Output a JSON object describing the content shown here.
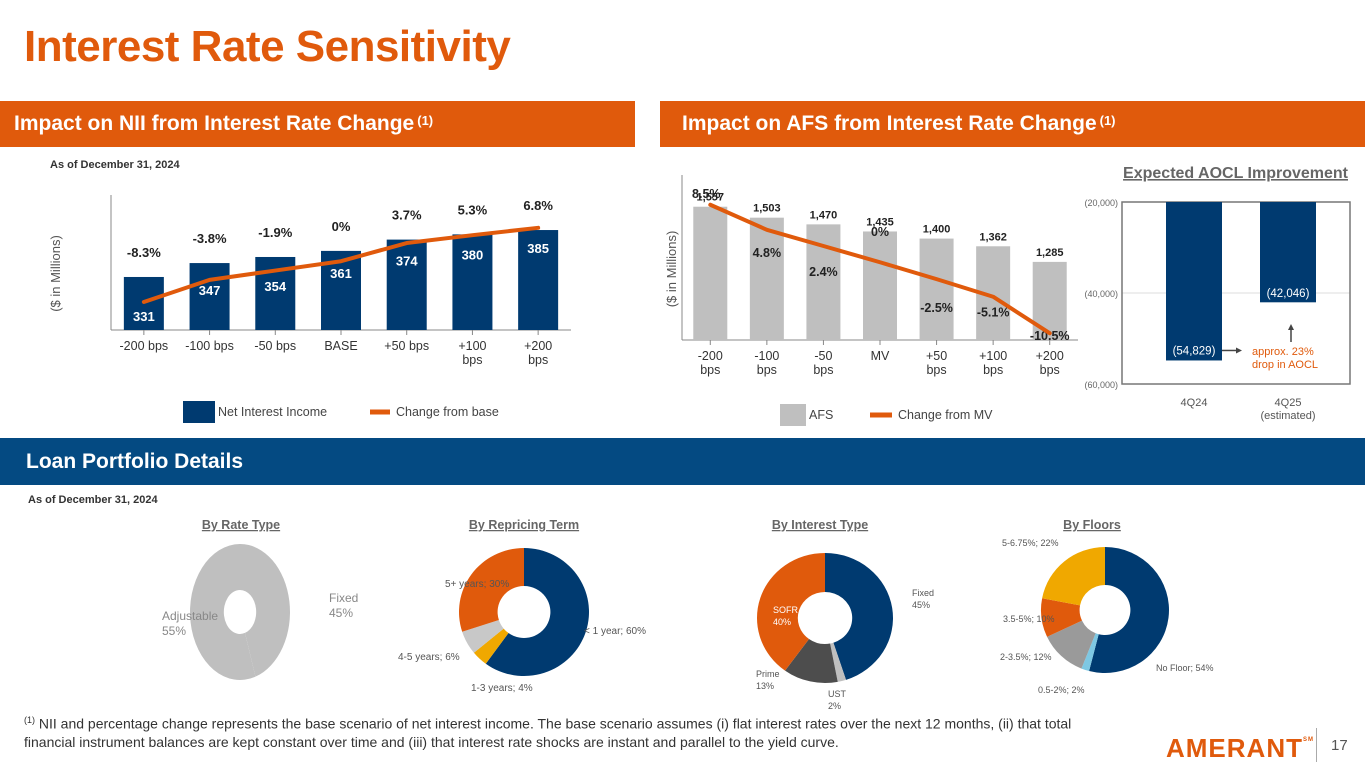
{
  "page": {
    "title": "Interest Rate Sensitivity",
    "page_number": "17",
    "logo_text": "AMERANT",
    "logo_mark": "SM"
  },
  "nii_section": {
    "header": "Impact on NII from Interest Rate Change",
    "header_note": "(1)",
    "as_of": "As of December 31, 2024"
  },
  "afs_section": {
    "header": "Impact on AFS from Interest Rate Change",
    "header_note": "(1)"
  },
  "loan_section": {
    "header": "Loan Portfolio Details",
    "as_of": "As of December 31, 2024"
  },
  "footnote": {
    "marker": "(1)",
    "text": "NII and percentage change represents the base scenario of net interest income. The base scenario assumes (i) flat interest rates over the next 12 months, (ii) that total financial instrument balances are kept constant over time and (iii) that interest rate shocks are instant and parallel to the yield curve."
  },
  "colors": {
    "orange": "#e05a0c",
    "navy": "#003a70",
    "band_blue": "#044a82",
    "gray": "#bfbfbf",
    "dark_gray": "#595959",
    "gold": "#f0a800",
    "light_blue": "#7ec8e3",
    "mid_gray": "#9a9a9a"
  },
  "chart_data": [
    {
      "id": "nii",
      "type": "bar",
      "title": "Impact on NII from Interest Rate Change",
      "ylabel": "($ in Millions)",
      "xlabel": "",
      "categories": [
        "-200 bps",
        "-100 bps",
        "-50 bps",
        "BASE",
        "+50 bps",
        "+100 bps",
        "+200 bps"
      ],
      "category_lines": [
        [
          "-200 bps"
        ],
        [
          "-100 bps"
        ],
        [
          "-50 bps"
        ],
        [
          "BASE"
        ],
        [
          "+50 bps"
        ],
        [
          "+100",
          "bps"
        ],
        [
          "+200",
          "bps"
        ]
      ],
      "series": [
        {
          "name": "Net Interest Income",
          "kind": "bar",
          "values": [
            331,
            347,
            354,
            361,
            374,
            380,
            385
          ],
          "labels": [
            "331",
            "347",
            "354",
            "361",
            "374",
            "380",
            "385"
          ]
        },
        {
          "name": "Change from base",
          "kind": "line",
          "values": [
            -8.3,
            -3.8,
            -1.9,
            0,
            3.7,
            5.3,
            6.8
          ],
          "labels": [
            "-8.3%",
            "-3.8%",
            "-1.9%",
            "0%",
            "3.7%",
            "5.3%",
            "6.8%"
          ]
        }
      ],
      "ylim": [
        270,
        400
      ],
      "y2lim": [
        -14,
        9
      ],
      "grid": false,
      "legend": "bottom"
    },
    {
      "id": "afs",
      "type": "bar",
      "title": "Impact on AFS from Interest Rate Change",
      "ylabel": "($ in Millions)",
      "xlabel": "",
      "categories": [
        "-200 bps",
        "-100 bps",
        "-50 bps",
        "MV",
        "+50 bps",
        "+100 bps",
        "+200 bps"
      ],
      "category_lines": [
        [
          "-200",
          "bps"
        ],
        [
          "-100",
          "bps"
        ],
        [
          "-50",
          "bps"
        ],
        [
          "MV"
        ],
        [
          "+50",
          "bps"
        ],
        [
          "+100",
          "bps"
        ],
        [
          "+200",
          "bps"
        ]
      ],
      "series": [
        {
          "name": "AFS",
          "kind": "bar",
          "values": [
            1557,
            1503,
            1470,
            1435,
            1400,
            1362,
            1285
          ],
          "labels": [
            "1,557",
            "1,503",
            "1,470",
            "1,435",
            "1,400",
            "1,362",
            "1,285"
          ]
        },
        {
          "name": "Change from MV",
          "kind": "line",
          "values": [
            8.5,
            4.8,
            2.4,
            0,
            -2.5,
            -5.1,
            -10.5
          ],
          "labels": [
            "8.5%",
            "4.8%",
            "2.4%",
            "0%",
            "-2.5%",
            "-5.1%",
            "-10.5%"
          ]
        }
      ],
      "ylim": [
        900,
        1600
      ],
      "y2lim": [
        -11.5,
        9.5
      ],
      "grid": false,
      "legend": "bottom"
    },
    {
      "id": "aocl",
      "type": "bar",
      "title": "Expected AOCL Improvement",
      "xlabel": "",
      "ylabel": "",
      "categories": [
        "4Q24",
        "4Q25 (estimated)"
      ],
      "category_lines": [
        [
          "4Q24"
        ],
        [
          "4Q25",
          "(estimated)"
        ]
      ],
      "values": [
        -54829,
        -42046
      ],
      "labels": [
        "(54,829)",
        "(42,046)"
      ],
      "ylim": [
        -60000,
        -20000
      ],
      "yticks": [
        -20000,
        -40000,
        -60000
      ],
      "ytick_labels": [
        "(20,000)",
        "(40,000)",
        "(60,000)"
      ],
      "annotation": [
        "approx. 23%",
        "drop in AOCL"
      ],
      "grid": true
    },
    {
      "id": "rate_type",
      "type": "pie",
      "title": "By Rate Type",
      "slices": [
        {
          "label": "Fixed",
          "value": 45,
          "text": "45%",
          "color": "#bfbfbf"
        },
        {
          "label": "Adjustable",
          "value": 55,
          "text": "55%",
          "color": "#bfbfbf"
        }
      ]
    },
    {
      "id": "repricing_term",
      "type": "pie",
      "title": "By Repricing Term",
      "slices": [
        {
          "label": "< 1 year; 60%",
          "value": 60,
          "color": "#003a70"
        },
        {
          "label": "1-3 years; 4%",
          "value": 4,
          "color": "#f0a800"
        },
        {
          "label": "4-5 years; 6%",
          "value": 6,
          "color": "#c8c8c8"
        },
        {
          "label": "5+ years; 30%",
          "value": 30,
          "color": "#e05a0c"
        }
      ]
    },
    {
      "id": "interest_type",
      "type": "pie",
      "title": "By Interest Type",
      "slices": [
        {
          "label": "Fixed",
          "text": "45%",
          "value": 45,
          "color": "#003a70"
        },
        {
          "label": "UST",
          "text": "2%",
          "value": 2,
          "color": "#bfbfbf"
        },
        {
          "label": "Prime",
          "text": "13%",
          "value": 13,
          "color": "#4d4d4d"
        },
        {
          "label": "SOFR",
          "text": "40%",
          "value": 40,
          "color": "#e05a0c"
        }
      ]
    },
    {
      "id": "floors",
      "type": "pie",
      "title": "By Floors",
      "slices": [
        {
          "label": "No Floor; 54%",
          "value": 54,
          "color": "#003a70"
        },
        {
          "label": "0.5-2%; 2%",
          "value": 2,
          "color": "#7ec8e3"
        },
        {
          "label": "2-3.5%; 12%",
          "value": 12,
          "color": "#9a9a9a"
        },
        {
          "label": "3.5-5%; 10%",
          "value": 10,
          "color": "#e05a0c"
        },
        {
          "label": "5-6.75%; 22%",
          "value": 22,
          "color": "#f0a800"
        }
      ]
    }
  ]
}
